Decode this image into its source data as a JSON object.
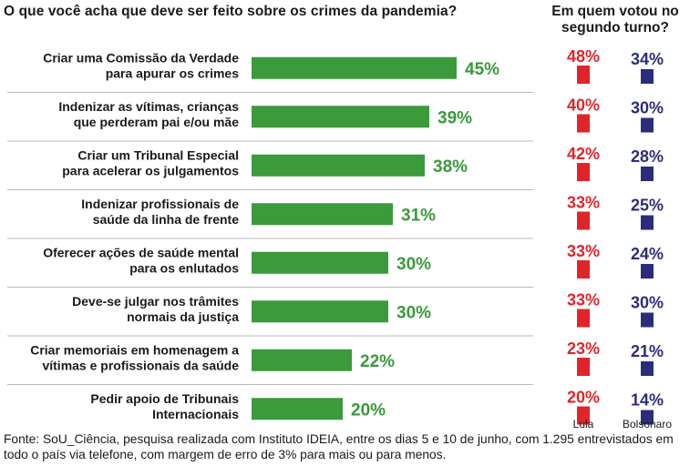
{
  "chart_data": {
    "type": "bar",
    "title": "O que você acha que deve ser feito sobre os crimes da pandemia?",
    "categories": [
      [
        "Criar uma Comissão da Verdade",
        "para apurar os crimes"
      ],
      [
        "Indenizar as vítimas, crianças",
        "que perderam pai e/ou mãe"
      ],
      [
        "Criar um Tribunal Especial",
        "para acelerar os julgamentos"
      ],
      [
        "Indenizar profissionais de",
        "saúde da linha de frente"
      ],
      [
        "Oferecer ações de saúde mental",
        "para os enlutados"
      ],
      [
        "Deve-se julgar nos trâmites",
        "normais da justiça"
      ],
      [
        "Criar memoriais em homenagem a",
        "vítimas e profissionais da saúde"
      ],
      [
        "Pedir apoio de Tribunais",
        "Internacionais"
      ]
    ],
    "values": [
      45,
      39,
      38,
      31,
      30,
      30,
      22,
      20
    ],
    "value_labels": [
      "45%",
      "39%",
      "38%",
      "31%",
      "30%",
      "30%",
      "22%",
      "20%"
    ],
    "bar_color": "#3a9a3c",
    "breakdown": {
      "header": "Em quem votou no segundo turno?",
      "series": [
        {
          "name": "Lula",
          "color": "#e0252a",
          "values": [
            48,
            40,
            42,
            33,
            33,
            33,
            23,
            20
          ],
          "value_labels": [
            "48%",
            "40%",
            "42%",
            "33%",
            "33%",
            "33%",
            "23%",
            "20%"
          ]
        },
        {
          "name": "Bolsonaro",
          "color": "#2b2d7c",
          "values": [
            34,
            30,
            28,
            25,
            24,
            30,
            21,
            14
          ],
          "value_labels": [
            "34%",
            "30%",
            "28%",
            "25%",
            "24%",
            "30%",
            "21%",
            "14%"
          ]
        }
      ]
    }
  },
  "footer": {
    "source": "Fonte: SoU_Ciência, pesquisa realizada com Instituto IDEIA, entre os dias 5 e 10 de junho, com 1.295 entrevistados em todo o país via telefone, com margem de erro de 3% para mais ou para menos."
  }
}
